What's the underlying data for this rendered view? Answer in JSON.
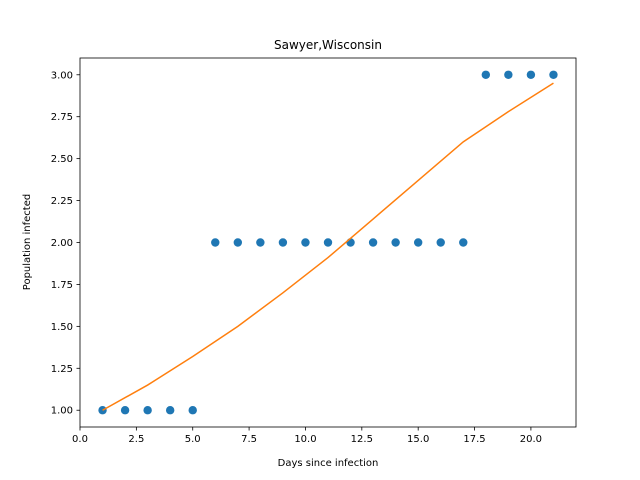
{
  "chart_data": {
    "type": "scatter",
    "title": "Sawyer,Wisconsin",
    "xlabel": "Days since infection",
    "ylabel": "Population infected",
    "xlim": [
      0.0,
      22.0
    ],
    "ylim": [
      0.9,
      3.1
    ],
    "x_ticks": [
      0.0,
      2.5,
      5.0,
      7.5,
      10.0,
      12.5,
      15.0,
      17.5,
      20.0
    ],
    "x_tick_labels": [
      "0.0",
      "2.5",
      "5.0",
      "7.5",
      "10.0",
      "12.5",
      "15.0",
      "17.5",
      "20.0"
    ],
    "y_ticks": [
      1.0,
      1.25,
      1.5,
      1.75,
      2.0,
      2.25,
      2.5,
      2.75,
      3.0
    ],
    "y_tick_labels": [
      "1.00",
      "1.25",
      "1.50",
      "1.75",
      "2.00",
      "2.25",
      "2.50",
      "2.75",
      "3.00"
    ],
    "grid": false,
    "series": [
      {
        "type": "scatter",
        "color": "#1f77b4",
        "x": [
          1,
          2,
          3,
          4,
          5,
          6,
          7,
          8,
          9,
          10,
          11,
          12,
          13,
          14,
          15,
          16,
          17,
          18,
          19,
          20,
          21
        ],
        "y": [
          1,
          1,
          1,
          1,
          1,
          2,
          2,
          2,
          2,
          2,
          2,
          2,
          2,
          2,
          2,
          2,
          2,
          3,
          3,
          3,
          3
        ]
      },
      {
        "type": "line",
        "color": "#ff7f0e",
        "x": [
          1,
          3,
          5,
          7,
          9,
          11,
          13,
          15,
          17,
          19,
          21
        ],
        "y": [
          1.0,
          1.15,
          1.32,
          1.5,
          1.7,
          1.91,
          2.14,
          2.37,
          2.6,
          2.78,
          2.95
        ]
      }
    ]
  }
}
